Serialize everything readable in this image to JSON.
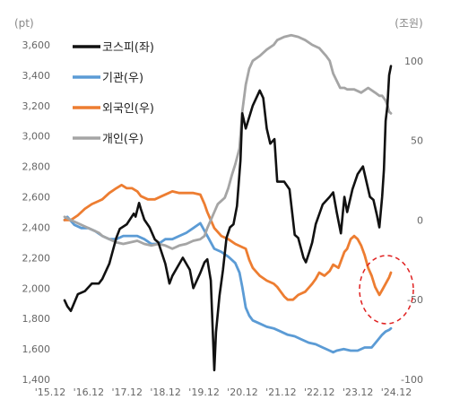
{
  "chart_data": {
    "type": "line",
    "title": "",
    "left_unit": "(pt)",
    "right_unit": "(조원)",
    "x_ticks": [
      "'15.12",
      "'16.12",
      "'17.12",
      "'18.12",
      "'19.12",
      "'20.12",
      "'21.12",
      "'22.12",
      "'23.12",
      "'24.12"
    ],
    "left_ticks": [
      "1,400",
      "1,600",
      "1,800",
      "2,000",
      "2,200",
      "2,400",
      "2,600",
      "2,800",
      "3,000",
      "3,200",
      "3,400",
      "3,600"
    ],
    "right_ticks": [
      "-100",
      "-50",
      "0",
      "50",
      "100"
    ],
    "left_ylim": [
      1400,
      3600
    ],
    "right_ylim": [
      -100,
      110
    ],
    "x_range": [
      2015.92,
      2025.25
    ],
    "legend_position": "top-left",
    "series": [
      {
        "name": "코스피(좌)",
        "axis": "left",
        "color": "#111111",
        "points": [
          [
            2015.92,
            1920
          ],
          [
            2016.0,
            1880
          ],
          [
            2016.1,
            1850
          ],
          [
            2016.3,
            1960
          ],
          [
            2016.5,
            1980
          ],
          [
            2016.7,
            2030
          ],
          [
            2016.9,
            2030
          ],
          [
            2017.0,
            2060
          ],
          [
            2017.2,
            2160
          ],
          [
            2017.4,
            2330
          ],
          [
            2017.5,
            2390
          ],
          [
            2017.7,
            2420
          ],
          [
            2017.9,
            2490
          ],
          [
            2017.95,
            2470
          ],
          [
            2018.05,
            2560
          ],
          [
            2018.1,
            2520
          ],
          [
            2018.2,
            2450
          ],
          [
            2018.35,
            2400
          ],
          [
            2018.5,
            2320
          ],
          [
            2018.6,
            2300
          ],
          [
            2018.8,
            2160
          ],
          [
            2018.92,
            2030
          ],
          [
            2019.0,
            2080
          ],
          [
            2019.2,
            2160
          ],
          [
            2019.3,
            2200
          ],
          [
            2019.5,
            2120
          ],
          [
            2019.6,
            2000
          ],
          [
            2019.8,
            2100
          ],
          [
            2019.92,
            2170
          ],
          [
            2020.0,
            2190
          ],
          [
            2020.1,
            2050
          ],
          [
            2020.2,
            1460
          ],
          [
            2020.25,
            1710
          ],
          [
            2020.35,
            1950
          ],
          [
            2020.45,
            2120
          ],
          [
            2020.55,
            2330
          ],
          [
            2020.65,
            2400
          ],
          [
            2020.75,
            2420
          ],
          [
            2020.85,
            2540
          ],
          [
            2020.95,
            2840
          ],
          [
            2021.0,
            3150
          ],
          [
            2021.1,
            3050
          ],
          [
            2021.3,
            3200
          ],
          [
            2021.5,
            3300
          ],
          [
            2021.6,
            3250
          ],
          [
            2021.7,
            3050
          ],
          [
            2021.8,
            2950
          ],
          [
            2021.92,
            2980
          ],
          [
            2022.0,
            2700
          ],
          [
            2022.2,
            2700
          ],
          [
            2022.35,
            2650
          ],
          [
            2022.5,
            2350
          ],
          [
            2022.6,
            2330
          ],
          [
            2022.75,
            2200
          ],
          [
            2022.82,
            2170
          ],
          [
            2022.92,
            2240
          ],
          [
            2023.0,
            2300
          ],
          [
            2023.1,
            2420
          ],
          [
            2023.3,
            2550
          ],
          [
            2023.5,
            2600
          ],
          [
            2023.6,
            2630
          ],
          [
            2023.7,
            2500
          ],
          [
            2023.82,
            2360
          ],
          [
            2023.92,
            2600
          ],
          [
            2024.0,
            2500
          ],
          [
            2024.15,
            2650
          ],
          [
            2024.3,
            2750
          ],
          [
            2024.45,
            2800
          ],
          [
            2024.55,
            2700
          ],
          [
            2024.65,
            2600
          ],
          [
            2024.75,
            2580
          ],
          [
            2024.85,
            2480
          ],
          [
            2024.92,
            2400
          ],
          [
            2025.0,
            2600
          ],
          [
            2025.05,
            2780
          ],
          [
            2025.1,
            3100
          ],
          [
            2025.15,
            3200
          ],
          [
            2025.2,
            3400
          ],
          [
            2025.25,
            3460
          ]
        ]
      },
      {
        "name": "기관(우)",
        "axis": "right",
        "color": "#5B9BD5",
        "points": [
          [
            2015.92,
            0
          ],
          [
            2016.0,
            2
          ],
          [
            2016.2,
            -3
          ],
          [
            2016.4,
            -5
          ],
          [
            2016.6,
            -5
          ],
          [
            2016.8,
            -7
          ],
          [
            2017.0,
            -10
          ],
          [
            2017.2,
            -12
          ],
          [
            2017.4,
            -12
          ],
          [
            2017.6,
            -10
          ],
          [
            2017.8,
            -10
          ],
          [
            2018.0,
            -10
          ],
          [
            2018.2,
            -12
          ],
          [
            2018.4,
            -15
          ],
          [
            2018.6,
            -15
          ],
          [
            2018.8,
            -12
          ],
          [
            2019.0,
            -12
          ],
          [
            2019.2,
            -10
          ],
          [
            2019.4,
            -8
          ],
          [
            2019.6,
            -5
          ],
          [
            2019.8,
            -2
          ],
          [
            2020.0,
            -10
          ],
          [
            2020.2,
            -18
          ],
          [
            2020.4,
            -20
          ],
          [
            2020.6,
            -23
          ],
          [
            2020.8,
            -27
          ],
          [
            2020.92,
            -33
          ],
          [
            2021.0,
            -42
          ],
          [
            2021.1,
            -55
          ],
          [
            2021.2,
            -60
          ],
          [
            2021.3,
            -63
          ],
          [
            2021.5,
            -65
          ],
          [
            2021.7,
            -67
          ],
          [
            2021.9,
            -68
          ],
          [
            2022.1,
            -70
          ],
          [
            2022.3,
            -72
          ],
          [
            2022.5,
            -73
          ],
          [
            2022.7,
            -75
          ],
          [
            2022.9,
            -77
          ],
          [
            2023.1,
            -78
          ],
          [
            2023.3,
            -80
          ],
          [
            2023.5,
            -82
          ],
          [
            2023.6,
            -83
          ],
          [
            2023.7,
            -82
          ],
          [
            2023.9,
            -81
          ],
          [
            2024.1,
            -82
          ],
          [
            2024.3,
            -82
          ],
          [
            2024.5,
            -80
          ],
          [
            2024.7,
            -80
          ],
          [
            2024.85,
            -76
          ],
          [
            2025.0,
            -72
          ],
          [
            2025.1,
            -70
          ],
          [
            2025.2,
            -69
          ],
          [
            2025.25,
            -68
          ]
        ]
      },
      {
        "name": "외국인(우)",
        "axis": "right",
        "color": "#ED7D31",
        "points": [
          [
            2015.92,
            0
          ],
          [
            2016.1,
            0
          ],
          [
            2016.3,
            3
          ],
          [
            2016.5,
            7
          ],
          [
            2016.7,
            10
          ],
          [
            2016.9,
            12
          ],
          [
            2017.0,
            13
          ],
          [
            2017.2,
            17
          ],
          [
            2017.4,
            20
          ],
          [
            2017.55,
            22
          ],
          [
            2017.7,
            20
          ],
          [
            2017.85,
            20
          ],
          [
            2018.0,
            18
          ],
          [
            2018.1,
            15
          ],
          [
            2018.3,
            13
          ],
          [
            2018.5,
            13
          ],
          [
            2018.7,
            15
          ],
          [
            2018.9,
            17
          ],
          [
            2019.0,
            18
          ],
          [
            2019.2,
            17
          ],
          [
            2019.4,
            17
          ],
          [
            2019.6,
            17
          ],
          [
            2019.8,
            16
          ],
          [
            2019.92,
            10
          ],
          [
            2020.0,
            5
          ],
          [
            2020.1,
            0
          ],
          [
            2020.2,
            -5
          ],
          [
            2020.4,
            -10
          ],
          [
            2020.6,
            -12
          ],
          [
            2020.8,
            -15
          ],
          [
            2021.0,
            -17
          ],
          [
            2021.1,
            -18
          ],
          [
            2021.2,
            -25
          ],
          [
            2021.3,
            -30
          ],
          [
            2021.5,
            -35
          ],
          [
            2021.7,
            -38
          ],
          [
            2021.9,
            -40
          ],
          [
            2022.0,
            -42
          ],
          [
            2022.1,
            -45
          ],
          [
            2022.2,
            -48
          ],
          [
            2022.3,
            -50
          ],
          [
            2022.45,
            -50
          ],
          [
            2022.6,
            -47
          ],
          [
            2022.8,
            -45
          ],
          [
            2022.92,
            -42
          ],
          [
            2023.0,
            -40
          ],
          [
            2023.1,
            -37
          ],
          [
            2023.2,
            -33
          ],
          [
            2023.35,
            -35
          ],
          [
            2023.5,
            -32
          ],
          [
            2023.6,
            -28
          ],
          [
            2023.75,
            -30
          ],
          [
            2023.92,
            -20
          ],
          [
            2024.0,
            -18
          ],
          [
            2024.1,
            -12
          ],
          [
            2024.2,
            -10
          ],
          [
            2024.3,
            -12
          ],
          [
            2024.4,
            -16
          ],
          [
            2024.5,
            -22
          ],
          [
            2024.6,
            -30
          ],
          [
            2024.7,
            -35
          ],
          [
            2024.8,
            -42
          ],
          [
            2024.92,
            -47
          ],
          [
            2025.0,
            -44
          ],
          [
            2025.1,
            -40
          ],
          [
            2025.2,
            -36
          ],
          [
            2025.25,
            -33
          ]
        ]
      },
      {
        "name": "개인(우)",
        "axis": "right",
        "color": "#A5A5A5",
        "points": [
          [
            2015.92,
            2
          ],
          [
            2016.1,
            0
          ],
          [
            2016.3,
            -2
          ],
          [
            2016.5,
            -4
          ],
          [
            2016.7,
            -6
          ],
          [
            2016.9,
            -8
          ],
          [
            2017.0,
            -10
          ],
          [
            2017.2,
            -12
          ],
          [
            2017.4,
            -14
          ],
          [
            2017.6,
            -15
          ],
          [
            2017.8,
            -14
          ],
          [
            2018.0,
            -13
          ],
          [
            2018.2,
            -15
          ],
          [
            2018.4,
            -16
          ],
          [
            2018.6,
            -15
          ],
          [
            2018.8,
            -16
          ],
          [
            2019.0,
            -18
          ],
          [
            2019.2,
            -16
          ],
          [
            2019.4,
            -15
          ],
          [
            2019.6,
            -13
          ],
          [
            2019.8,
            -12
          ],
          [
            2019.92,
            -10
          ],
          [
            2020.0,
            -5
          ],
          [
            2020.1,
            0
          ],
          [
            2020.2,
            5
          ],
          [
            2020.3,
            10
          ],
          [
            2020.4,
            12
          ],
          [
            2020.5,
            14
          ],
          [
            2020.6,
            20
          ],
          [
            2020.7,
            28
          ],
          [
            2020.8,
            35
          ],
          [
            2020.92,
            45
          ],
          [
            2021.0,
            68
          ],
          [
            2021.1,
            85
          ],
          [
            2021.2,
            95
          ],
          [
            2021.3,
            100
          ],
          [
            2021.5,
            103
          ],
          [
            2021.7,
            107
          ],
          [
            2021.9,
            110
          ],
          [
            2022.0,
            113
          ],
          [
            2022.2,
            115
          ],
          [
            2022.4,
            116
          ],
          [
            2022.6,
            115
          ],
          [
            2022.8,
            113
          ],
          [
            2023.0,
            110
          ],
          [
            2023.2,
            108
          ],
          [
            2023.4,
            103
          ],
          [
            2023.5,
            100
          ],
          [
            2023.6,
            92
          ],
          [
            2023.8,
            83
          ],
          [
            2023.92,
            83
          ],
          [
            2024.0,
            82
          ],
          [
            2024.2,
            82
          ],
          [
            2024.4,
            80
          ],
          [
            2024.6,
            83
          ],
          [
            2024.8,
            80
          ],
          [
            2024.92,
            78
          ],
          [
            2025.0,
            78
          ],
          [
            2025.1,
            75
          ],
          [
            2025.15,
            72
          ],
          [
            2025.2,
            68
          ],
          [
            2025.25,
            67
          ]
        ]
      }
    ]
  }
}
